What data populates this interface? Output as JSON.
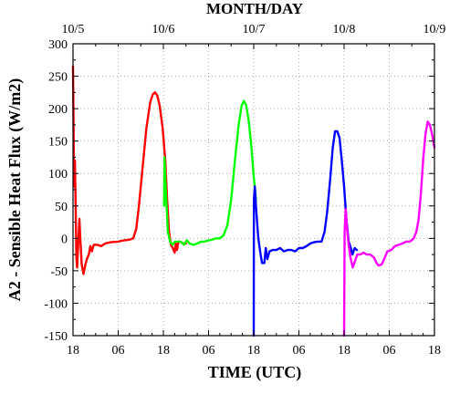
{
  "chart_data": {
    "type": "line",
    "title": "MONTH/DAY",
    "xlabel": "TIME (UTC)",
    "ylabel": "A2 - Sensible Heat Flux (W/m2)",
    "xlim": [
      0,
      96
    ],
    "ylim": [
      -150,
      300
    ],
    "grid": true,
    "y_ticks": [
      -150,
      -100,
      -50,
      0,
      50,
      100,
      150,
      200,
      250,
      300
    ],
    "x_ticks_bottom": [
      {
        "x": 0,
        "label": "18"
      },
      {
        "x": 12,
        "label": "06"
      },
      {
        "x": 24,
        "label": "18"
      },
      {
        "x": 36,
        "label": "06"
      },
      {
        "x": 48,
        "label": "18"
      },
      {
        "x": 60,
        "label": "06"
      },
      {
        "x": 72,
        "label": "18"
      },
      {
        "x": 84,
        "label": "06"
      },
      {
        "x": 96,
        "label": "18"
      }
    ],
    "x_ticks_top": [
      {
        "x": 0,
        "label": "10/5"
      },
      {
        "x": 24,
        "label": "10/6"
      },
      {
        "x": 48,
        "label": "10/7"
      },
      {
        "x": 72,
        "label": "10/8"
      },
      {
        "x": 96,
        "label": "10/9"
      }
    ],
    "series": [
      {
        "color": "#ff0000",
        "points": [
          [
            0,
            265
          ],
          [
            0.3,
            80
          ],
          [
            0.5,
            120
          ],
          [
            0.7,
            50
          ],
          [
            0.9,
            -30
          ],
          [
            1.1,
            -45
          ],
          [
            1.4,
            -5
          ],
          [
            1.7,
            30
          ],
          [
            1.9,
            5
          ],
          [
            2.3,
            -40
          ],
          [
            2.8,
            -55
          ],
          [
            3.3,
            -40
          ],
          [
            3.8,
            -30
          ],
          [
            4.2,
            -25
          ],
          [
            4.6,
            -12
          ],
          [
            5.0,
            -20
          ],
          [
            5.5,
            -10
          ],
          [
            6.5,
            -10
          ],
          [
            7.5,
            -12
          ],
          [
            8.5,
            -8
          ],
          [
            10,
            -6
          ],
          [
            12,
            -5
          ],
          [
            13.5,
            -3
          ],
          [
            15,
            -2
          ],
          [
            16,
            0
          ],
          [
            16.8,
            15
          ],
          [
            17.5,
            50
          ],
          [
            18.5,
            110
          ],
          [
            19.5,
            170
          ],
          [
            20.5,
            210
          ],
          [
            21.2,
            222
          ],
          [
            21.8,
            225
          ],
          [
            22.4,
            220
          ],
          [
            23,
            205
          ],
          [
            23.8,
            170
          ],
          [
            24.5,
            120
          ],
          [
            25,
            60
          ],
          [
            25.5,
            10
          ],
          [
            26,
            -10
          ],
          [
            26.5,
            -15
          ],
          [
            27,
            -22
          ],
          [
            27.3,
            -8
          ],
          [
            27.6,
            -18
          ],
          [
            28,
            -5
          ],
          [
            28.5,
            -5
          ],
          [
            29.2,
            -8
          ],
          [
            30,
            -8
          ]
        ]
      },
      {
        "color": "#00ff00",
        "points": [
          [
            24.2,
            50
          ],
          [
            24.3,
            125
          ],
          [
            24.6,
            80
          ],
          [
            25.2,
            10
          ],
          [
            25.8,
            -5
          ],
          [
            26.4,
            -10
          ],
          [
            27.1,
            -5
          ],
          [
            27.8,
            -5
          ],
          [
            28.6,
            -5
          ],
          [
            29.5,
            -10
          ],
          [
            30.2,
            -3
          ],
          [
            31,
            -8
          ],
          [
            32,
            -10
          ],
          [
            33,
            -8
          ],
          [
            34,
            -5
          ],
          [
            35,
            -5
          ],
          [
            36,
            -3
          ],
          [
            37,
            -2
          ],
          [
            38,
            0
          ],
          [
            39,
            0
          ],
          [
            40,
            5
          ],
          [
            41,
            20
          ],
          [
            42,
            60
          ],
          [
            43,
            120
          ],
          [
            44,
            175
          ],
          [
            44.8,
            205
          ],
          [
            45.4,
            212
          ],
          [
            46,
            205
          ],
          [
            46.7,
            180
          ],
          [
            47.4,
            140
          ],
          [
            48,
            95
          ],
          [
            48.6,
            60
          ]
        ]
      },
      {
        "color": "#0000ff",
        "points": [
          [
            48,
            -150
          ],
          [
            48.05,
            60
          ],
          [
            48.3,
            80
          ],
          [
            48.7,
            40
          ],
          [
            49.2,
            0
          ],
          [
            49.7,
            -20
          ],
          [
            50.2,
            -38
          ],
          [
            50.8,
            -38
          ],
          [
            51.2,
            -15
          ],
          [
            51.6,
            -32
          ],
          [
            52.2,
            -20
          ],
          [
            53,
            -18
          ],
          [
            54,
            -18
          ],
          [
            55,
            -15
          ],
          [
            56,
            -20
          ],
          [
            57,
            -18
          ],
          [
            58,
            -18
          ],
          [
            59,
            -20
          ],
          [
            60,
            -15
          ],
          [
            61,
            -15
          ],
          [
            62,
            -12
          ],
          [
            63,
            -8
          ],
          [
            64,
            -6
          ],
          [
            65,
            -5
          ],
          [
            66,
            -5
          ],
          [
            66.8,
            10
          ],
          [
            67.5,
            40
          ],
          [
            68.3,
            90
          ],
          [
            69,
            140
          ],
          [
            69.6,
            165
          ],
          [
            70.2,
            165
          ],
          [
            70.8,
            155
          ],
          [
            71.4,
            120
          ],
          [
            72,
            80
          ],
          [
            72.6,
            30
          ],
          [
            73.2,
            -5
          ],
          [
            73.8,
            -15
          ],
          [
            74.2,
            -25
          ],
          [
            74.8,
            -15
          ],
          [
            75.4,
            -18
          ]
        ]
      },
      {
        "color": "#ff00ff",
        "points": [
          [
            72,
            -150
          ],
          [
            72.15,
            10
          ],
          [
            72.4,
            45
          ],
          [
            72.8,
            15
          ],
          [
            73.2,
            -10
          ],
          [
            73.7,
            -30
          ],
          [
            74.3,
            -45
          ],
          [
            74.9,
            -35
          ],
          [
            75.5,
            -25
          ],
          [
            76.3,
            -25
          ],
          [
            77.2,
            -22
          ],
          [
            78,
            -25
          ],
          [
            79,
            -25
          ],
          [
            80,
            -30
          ],
          [
            80.6,
            -38
          ],
          [
            81.2,
            -42
          ],
          [
            82,
            -40
          ],
          [
            82.8,
            -30
          ],
          [
            83.5,
            -20
          ],
          [
            84.5,
            -18
          ],
          [
            85.5,
            -12
          ],
          [
            86.5,
            -10
          ],
          [
            87.5,
            -8
          ],
          [
            88.5,
            -5
          ],
          [
            89.5,
            -5
          ],
          [
            90.5,
            0
          ],
          [
            91.2,
            10
          ],
          [
            91.8,
            30
          ],
          [
            92.4,
            70
          ],
          [
            93,
            120
          ],
          [
            93.6,
            160
          ],
          [
            94.2,
            180
          ],
          [
            94.8,
            175
          ],
          [
            95.4,
            160
          ],
          [
            96,
            140
          ]
        ]
      }
    ]
  }
}
